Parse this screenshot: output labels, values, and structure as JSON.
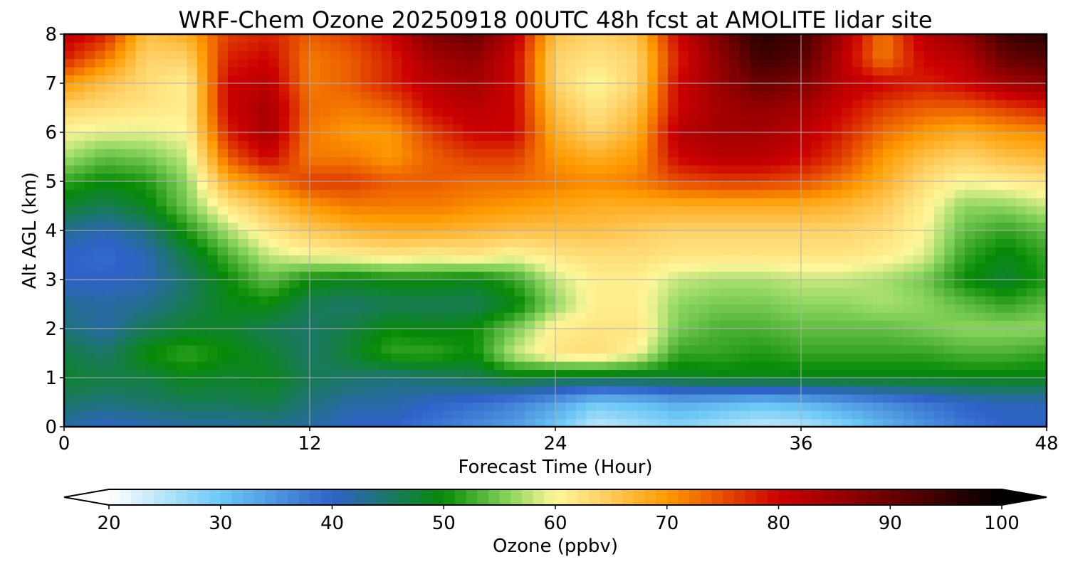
{
  "chart_data": {
    "type": "heatmap",
    "title": "WRF-Chem Ozone  20250918 00UTC 48h fcst at AMOLITE lidar site",
    "xlabel": "Forecast Time (Hour)",
    "ylabel": "Alt AGL (km)",
    "xlim": [
      0,
      48
    ],
    "ylim": [
      0,
      8
    ],
    "xticks": [
      "0",
      "12",
      "24",
      "36",
      "48"
    ],
    "yticks": [
      "0",
      "1",
      "2",
      "3",
      "4",
      "5",
      "6",
      "7",
      "8"
    ],
    "grid": true,
    "colorbar": {
      "label": "Ozone  (ppbv)",
      "range": [
        20,
        100
      ],
      "ticks": [
        "20",
        "30",
        "40",
        "50",
        "60",
        "70",
        "80",
        "90",
        "100"
      ],
      "extend": "both",
      "orientation": "horizontal",
      "colors": [
        [
          20,
          "#ffffff"
        ],
        [
          30,
          "#6cc8f6"
        ],
        [
          40,
          "#2f62c9"
        ],
        [
          50,
          "#078a07"
        ],
        [
          56,
          "#8ed660"
        ],
        [
          60,
          "#fff79a"
        ],
        [
          64,
          "#ffd36a"
        ],
        [
          70,
          "#ff9a00"
        ],
        [
          80,
          "#cc0000"
        ],
        [
          90,
          "#6a0000"
        ],
        [
          100,
          "#000000"
        ]
      ]
    },
    "hours": [
      0,
      2,
      4,
      6,
      8,
      10,
      12,
      14,
      16,
      18,
      20,
      22,
      24,
      26,
      28,
      30,
      32,
      34,
      36,
      38,
      40,
      42,
      44,
      46,
      48
    ],
    "altitudes_km": [
      0,
      0.5,
      1,
      1.5,
      2,
      2.5,
      3,
      3.5,
      4,
      4.5,
      5,
      5.5,
      6,
      6.5,
      7,
      7.5,
      8
    ],
    "ozone_ppbv": [
      [
        42,
        40,
        41,
        42,
        42,
        43,
        42,
        40,
        40,
        38,
        36,
        34,
        30,
        24,
        26,
        28,
        26,
        24,
        25,
        28,
        32,
        35,
        38,
        40,
        40
      ],
      [
        45,
        44,
        45,
        46,
        46,
        47,
        44,
        42,
        42,
        40,
        39,
        37,
        34,
        30,
        31,
        33,
        32,
        31,
        32,
        34,
        36,
        38,
        40,
        41,
        41
      ],
      [
        48,
        47,
        47,
        49,
        48,
        49,
        46,
        45,
        44,
        45,
        46,
        48,
        47,
        47,
        47,
        48,
        49,
        49,
        49,
        49,
        49,
        49,
        49,
        49,
        49
      ],
      [
        47,
        45,
        50,
        52,
        50,
        48,
        45,
        48,
        52,
        52,
        50,
        58,
        62,
        63,
        60,
        52,
        52,
        51,
        52,
        52,
        52,
        52,
        53,
        53,
        52
      ],
      [
        44,
        42,
        46,
        48,
        48,
        46,
        45,
        47,
        50,
        49,
        50,
        55,
        61,
        62,
        62,
        55,
        53,
        53,
        54,
        54,
        54,
        55,
        56,
        56,
        56
      ],
      [
        43,
        42,
        43,
        46,
        49,
        50,
        46,
        45,
        46,
        46,
        46,
        49,
        56,
        61,
        61,
        56,
        55,
        55,
        56,
        56,
        57,
        56,
        54,
        52,
        54
      ],
      [
        40,
        40,
        41,
        45,
        50,
        54,
        50,
        49,
        50,
        50,
        49,
        52,
        58,
        61,
        61,
        58,
        57,
        57,
        58,
        58,
        57,
        55,
        50,
        48,
        51
      ],
      [
        40,
        39,
        41,
        47,
        53,
        58,
        60,
        61,
        62,
        61,
        62,
        60,
        62,
        63,
        63,
        62,
        62,
        62,
        62,
        62,
        61,
        59,
        52,
        49,
        52
      ],
      [
        43,
        41,
        44,
        51,
        57,
        62,
        65,
        67,
        68,
        68,
        67,
        66,
        66,
        66,
        65,
        64,
        64,
        64,
        64,
        64,
        63,
        60,
        54,
        52,
        54
      ],
      [
        48,
        46,
        49,
        55,
        62,
        66,
        70,
        72,
        72,
        72,
        71,
        70,
        69,
        68,
        68,
        68,
        68,
        68,
        68,
        67,
        65,
        61,
        56,
        56,
        58
      ],
      [
        52,
        50,
        51,
        56,
        68,
        72,
        76,
        76,
        74,
        74,
        73,
        73,
        72,
        71,
        72,
        75,
        76,
        76,
        75,
        72,
        68,
        63,
        60,
        61,
        62
      ],
      [
        57,
        54,
        55,
        58,
        74,
        80,
        72,
        72,
        70,
        74,
        76,
        76,
        70,
        68,
        70,
        80,
        82,
        82,
        80,
        76,
        70,
        66,
        64,
        66,
        67
      ],
      [
        60,
        59,
        59,
        60,
        78,
        84,
        72,
        70,
        70,
        76,
        80,
        80,
        68,
        64,
        68,
        82,
        84,
        84,
        82,
        78,
        73,
        70,
        68,
        70,
        71
      ],
      [
        64,
        63,
        62,
        61,
        80,
        84,
        73,
        72,
        74,
        80,
        82,
        80,
        66,
        62,
        66,
        80,
        84,
        86,
        84,
        80,
        76,
        74,
        74,
        76,
        78
      ],
      [
        70,
        66,
        63,
        61,
        80,
        82,
        72,
        74,
        78,
        82,
        84,
        80,
        64,
        60,
        64,
        80,
        85,
        90,
        88,
        82,
        80,
        78,
        80,
        84,
        86
      ],
      [
        78,
        72,
        64,
        64,
        78,
        80,
        72,
        74,
        78,
        84,
        86,
        80,
        64,
        62,
        64,
        78,
        86,
        94,
        92,
        82,
        72,
        80,
        82,
        90,
        92
      ],
      [
        82,
        78,
        66,
        68,
        76,
        78,
        74,
        76,
        80,
        88,
        90,
        82,
        66,
        64,
        66,
        80,
        88,
        96,
        94,
        84,
        72,
        82,
        86,
        94,
        96
      ]
    ]
  }
}
